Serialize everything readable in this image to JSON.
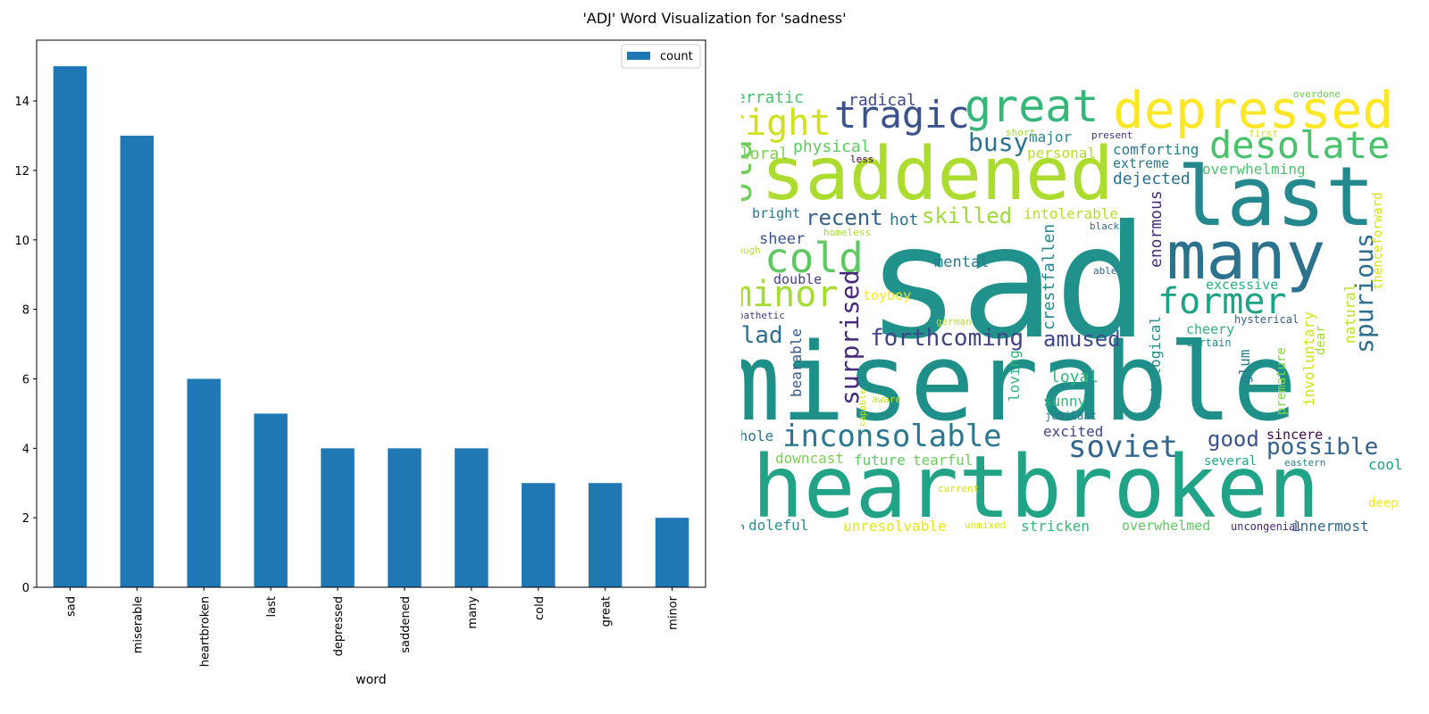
{
  "figure_title": "'ADJ' Word Visualization for 'sadness'",
  "chart_data": [
    {
      "type": "bar",
      "title": "",
      "xlabel": "word",
      "ylabel": "",
      "categories": [
        "sad",
        "miserable",
        "heartbroken",
        "last",
        "depressed",
        "saddened",
        "many",
        "cold",
        "great",
        "minor"
      ],
      "series": [
        {
          "name": "count",
          "values": [
            15,
            13,
            6,
            5,
            4,
            4,
            4,
            3,
            3,
            2
          ]
        }
      ],
      "ylim": [
        0,
        15.75
      ],
      "yticks": [
        0,
        2,
        4,
        6,
        8,
        10,
        12,
        14
      ],
      "color": "#1f77b4",
      "legend_position": "top-right",
      "grid": false,
      "x_tick_rotation": "vertical"
    }
  ],
  "word_cloud": {
    "colormap": "viridis",
    "words": [
      {
        "text": "sad",
        "color": "#21918c"
      },
      {
        "text": "miserable",
        "color": "#1f8f8a"
      },
      {
        "text": "heartbroken",
        "color": "#20a386"
      },
      {
        "text": "saddened",
        "color": "#addc30"
      },
      {
        "text": "last",
        "color": "#23898e"
      },
      {
        "text": "many",
        "color": "#2c728e"
      },
      {
        "text": "depressed",
        "color": "#fde725"
      },
      {
        "text": "great",
        "color": "#35b779"
      },
      {
        "text": "tragic",
        "color": "#3b528b"
      },
      {
        "text": "right",
        "color": "#d0e11c"
      },
      {
        "text": "desolate",
        "color": "#4ac16d"
      },
      {
        "text": "former",
        "color": "#1fa187"
      },
      {
        "text": "cold",
        "color": "#5ec962"
      },
      {
        "text": "minor",
        "color": "#a5db36"
      },
      {
        "text": "old",
        "color": "#6ece58"
      },
      {
        "text": "inconsolable",
        "color": "#2a788e"
      },
      {
        "text": "soviet",
        "color": "#31668e"
      },
      {
        "text": "spurious",
        "color": "#2d708e"
      },
      {
        "text": "surprised",
        "color": "#482878"
      },
      {
        "text": "busy",
        "color": "#2c728e"
      },
      {
        "text": "forthcoming",
        "color": "#414487"
      },
      {
        "text": "possible",
        "color": "#33638d"
      },
      {
        "text": "glad",
        "color": "#2e6e8e"
      },
      {
        "text": "amused",
        "color": "#3e4a89"
      },
      {
        "text": "skilled",
        "color": "#9fda3a"
      },
      {
        "text": "recent",
        "color": "#33638d"
      },
      {
        "text": "good",
        "color": "#3b528b"
      },
      {
        "text": "physical",
        "color": "#5ec962"
      },
      {
        "text": "erratic",
        "color": "#4ac16d"
      },
      {
        "text": "radical",
        "color": "#3e4a89"
      },
      {
        "text": "floral",
        "color": "#7ad151"
      },
      {
        "text": "major",
        "color": "#24868e"
      },
      {
        "text": "comforting",
        "color": "#287c8e"
      },
      {
        "text": "personal",
        "color": "#b5de2b"
      },
      {
        "text": "extreme",
        "color": "#2a788e"
      },
      {
        "text": "overwhelming",
        "color": "#4ac16d"
      },
      {
        "text": "dejected",
        "color": "#2d708e"
      },
      {
        "text": "bright",
        "color": "#2a788e"
      },
      {
        "text": "hot",
        "color": "#2c728e"
      },
      {
        "text": "intolerable",
        "color": "#b5de2b"
      },
      {
        "text": "crestfallen",
        "color": "#23898e"
      },
      {
        "text": "enormous",
        "color": "#472d7b"
      },
      {
        "text": "mental",
        "color": "#287c8e"
      },
      {
        "text": "sheer",
        "color": "#3b528b"
      },
      {
        "text": "double",
        "color": "#433e85"
      },
      {
        "text": "excessive",
        "color": "#2ab07f"
      },
      {
        "text": "thenceforward",
        "color": "#d8e219"
      },
      {
        "text": "natural",
        "color": "#bddf26"
      },
      {
        "text": "involuntary",
        "color": "#d2e21b"
      },
      {
        "text": "dear",
        "color": "#a0da39"
      },
      {
        "text": "premature",
        "color": "#7fd34e"
      },
      {
        "text": "cheery",
        "color": "#2db27d"
      },
      {
        "text": "certain",
        "color": "#24868e"
      },
      {
        "text": "hysterical",
        "color": "#355f8d"
      },
      {
        "text": "ontological",
        "color": "#228c8d"
      },
      {
        "text": "glum",
        "color": "#287c8e"
      },
      {
        "text": "loyal",
        "color": "#35b779"
      },
      {
        "text": "bearable",
        "color": "#38598c"
      },
      {
        "text": "loving",
        "color": "#31b57b"
      },
      {
        "text": "sunny",
        "color": "#35b779"
      },
      {
        "text": "jubilant",
        "color": "#2a788e"
      },
      {
        "text": "excited",
        "color": "#404688"
      },
      {
        "text": "sincere",
        "color": "#440154"
      },
      {
        "text": "whole",
        "color": "#2c728e"
      },
      {
        "text": "downcast",
        "color": "#7ad151"
      },
      {
        "text": "future",
        "color": "#5ec962"
      },
      {
        "text": "tearful",
        "color": "#6ece58"
      },
      {
        "text": "several",
        "color": "#21a685"
      },
      {
        "text": "eastern",
        "color": "#26828e"
      },
      {
        "text": "cool",
        "color": "#1fa088"
      },
      {
        "text": "genuine",
        "color": "#38598c"
      },
      {
        "text": "doleful",
        "color": "#21918c"
      },
      {
        "text": "unresolvable",
        "color": "#e5e419"
      },
      {
        "text": "stricken",
        "color": "#35b779"
      },
      {
        "text": "overwhelmed",
        "color": "#5ec962"
      },
      {
        "text": "uncongenial",
        "color": "#482878"
      },
      {
        "text": "innermost",
        "color": "#31688e"
      },
      {
        "text": "deep",
        "color": "#fde725"
      },
      {
        "text": "current",
        "color": "#d8e219"
      },
      {
        "text": "unmixed",
        "color": "#dde318"
      },
      {
        "text": "toyboy",
        "color": "#fde725"
      },
      {
        "text": "sympathetic",
        "color": "#443983"
      },
      {
        "text": "german",
        "color": "#b8de29"
      },
      {
        "text": "aware",
        "color": "#c2df23"
      },
      {
        "text": "capable",
        "color": "#c8e020"
      },
      {
        "text": "homeless",
        "color": "#a8db34"
      },
      {
        "text": "enough",
        "color": "#b5de2b"
      },
      {
        "text": "black",
        "color": "#2d708e"
      },
      {
        "text": "able",
        "color": "#31688e"
      },
      {
        "text": "less",
        "color": "#440154"
      },
      {
        "text": "short",
        "color": "#a0da39"
      },
      {
        "text": "first",
        "color": "#d8e219"
      },
      {
        "text": "present",
        "color": "#46307e"
      },
      {
        "text": "overdone",
        "color": "#6ece58"
      }
    ]
  }
}
